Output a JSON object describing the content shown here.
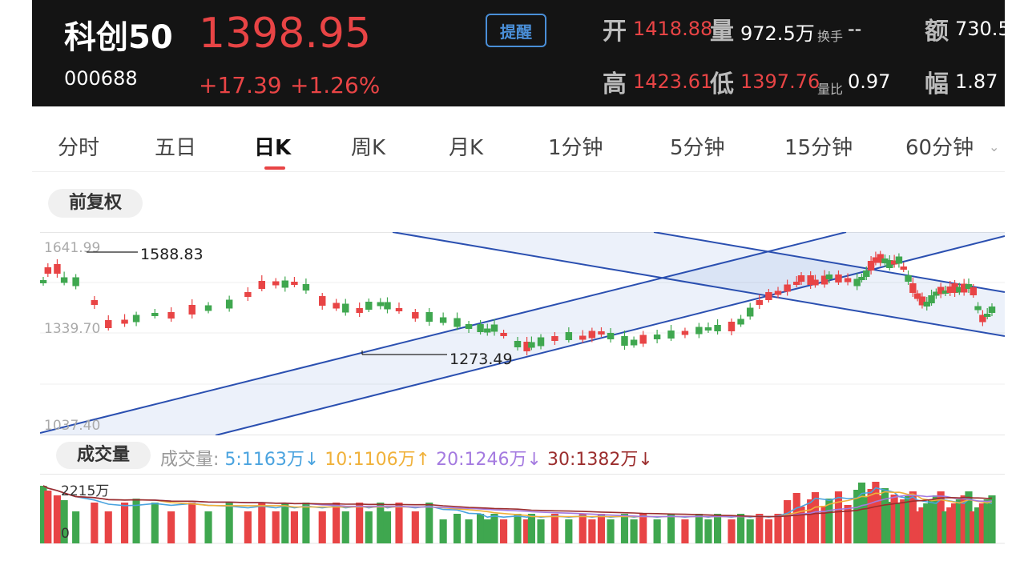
{
  "header": {
    "name": "科创50",
    "code": "000688",
    "price": "1398.95",
    "change": "+17.39",
    "change_pct": "+1.26%",
    "alert_button": "提醒",
    "open_label": "开",
    "open_value": "1418.88",
    "volume_label": "量",
    "volume_value": "972.5万",
    "turnover_label": "换手",
    "turnover_value": "--",
    "amount_label": "额",
    "amount_value": "730.5",
    "high_label": "高",
    "high_value": "1423.61",
    "low_label": "低",
    "low_value": "1397.76",
    "vol_ratio_label": "量比",
    "vol_ratio_value": "0.97",
    "amplitude_label": "幅",
    "amplitude_value": "1.87"
  },
  "tabs": [
    "分时",
    "五日",
    "日K",
    "周K",
    "月K",
    "1分钟",
    "5分钟",
    "15分钟",
    "60分钟"
  ],
  "active_tab": "日K",
  "adjust_pill": "前复权",
  "kline": {
    "y_top_label": "1641.99",
    "y_mid_label": "1339.70",
    "y_bottom_label": "1037.40",
    "max_annotation": "1588.83",
    "min_annotation": "1273.49"
  },
  "volume": {
    "pill": "成交量",
    "indicator_label": "成交量:",
    "ma5": "5:1163万",
    "ma10": "10:1106万",
    "ma20": "20:1246万",
    "ma30": "30:1382万",
    "arrow_ma5": "↓",
    "arrow_ma10": "↑",
    "arrow_ma20": "↓",
    "arrow_ma30": "↓",
    "y_top_label": "2215万",
    "y_zero_label": "0"
  },
  "colors": {
    "up": "#e84445",
    "down": "#3fa74f",
    "channel": "#2a4fb0",
    "ma5": "#4aa3df",
    "ma10": "#f0b13a",
    "ma20": "#a47ae0",
    "ma30": "#9b2d2d"
  }
}
